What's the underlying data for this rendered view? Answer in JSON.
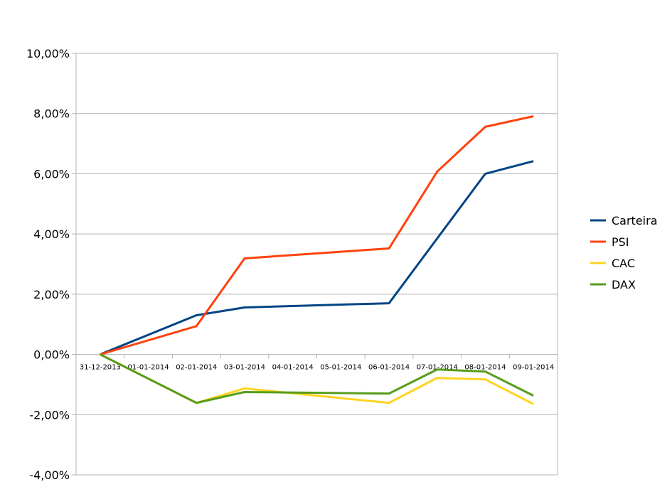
{
  "chart_data": {
    "type": "line",
    "title": "",
    "xlabel": "",
    "ylabel": "",
    "categories": [
      "31-12-2013",
      "01-01-2014",
      "02-01-2014",
      "03-01-2014",
      "04-01-2014",
      "05-01-2014",
      "06-01-2014",
      "07-01-2014",
      "08-01-2014",
      "09-01-2014"
    ],
    "ylim": [
      -4,
      10
    ],
    "yticks": [
      10,
      8,
      6,
      4,
      2,
      0,
      -2,
      -4
    ],
    "ytick_labels": [
      "10,00%",
      "8,00%",
      "6,00%",
      "4,00%",
      "2,00%",
      "0,00%",
      "-2,00%",
      "-4,00%"
    ],
    "grid": "horizontal",
    "legend": "right",
    "series": [
      {
        "name": "Carteira",
        "color": "#004586",
        "values": [
          0,
          null,
          1.3,
          1.56,
          null,
          null,
          1.7,
          3.85,
          6.0,
          6.42
        ]
      },
      {
        "name": "PSI",
        "color": "#ff420e",
        "values": [
          0,
          null,
          0.94,
          3.19,
          null,
          null,
          3.52,
          6.07,
          7.56,
          7.91
        ]
      },
      {
        "name": "CAC",
        "color": "#ffd320",
        "values": [
          0,
          null,
          -1.61,
          -1.13,
          null,
          null,
          -1.61,
          -0.78,
          -0.83,
          -1.65
        ]
      },
      {
        "name": "DAX",
        "color": "#579d1c",
        "values": [
          0,
          null,
          -1.61,
          -1.25,
          null,
          null,
          -1.3,
          -0.5,
          -0.57,
          -1.37
        ]
      }
    ]
  }
}
